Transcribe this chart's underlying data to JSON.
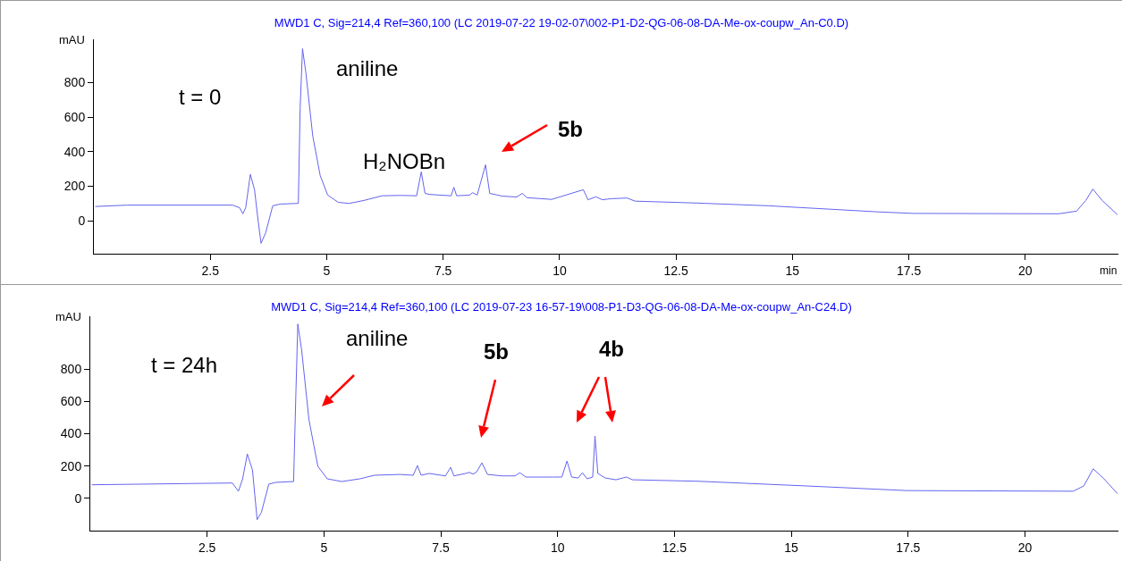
{
  "chart_data": [
    {
      "type": "line",
      "title": "MWD1 C, Sig=214,4 Ref=360,100 (LC 2019-07-22 19-02-07\\002-P1-D2-QG-06-08-DA-Me-ox-coupw_An-C0.D)",
      "xlabel": "min",
      "ylabel": "mAU",
      "annotations": [
        "t = 0",
        "aniline",
        "H₂NOBn",
        "5b"
      ],
      "series": [
        {
          "color": "#6464f0",
          "x": [
            0.03,
            0.72,
            2.98,
            3.13,
            3.2,
            3.26,
            3.36,
            3.45,
            3.53,
            3.59,
            3.69,
            3.84,
            4.0,
            4.39,
            4.43,
            4.48,
            4.55,
            4.7,
            4.86,
            5.02,
            5.25,
            5.48,
            5.8,
            6.19,
            6.58,
            6.93,
            7.03,
            7.11,
            7.2,
            7.67,
            7.73,
            7.79,
            8.07,
            8.13,
            8.23,
            8.41,
            8.5,
            8.77,
            9.08,
            9.2,
            9.3,
            9.83,
            10.51,
            10.61,
            10.78,
            10.92,
            11.1,
            11.45,
            11.62,
            12.94,
            14.5,
            16.83,
            17.6,
            20.72,
            21.1,
            21.3,
            21.45,
            21.65,
            21.98
          ],
          "values": [
            83,
            91,
            91,
            76,
            41,
            76,
            269,
            180,
            -6,
            -130,
            -68,
            87,
            97,
            101,
            655,
            996,
            862,
            490,
            262,
            149,
            107,
            101,
            118,
            145,
            147,
            145,
            283,
            159,
            153,
            145,
            194,
            145,
            149,
            163,
            149,
            324,
            159,
            143,
            138,
            159,
            134,
            124,
            180,
            122,
            139,
            122,
            128,
            132,
            114,
            103,
            87,
            52,
            43,
            41,
            56,
            118,
            184,
            118,
            35
          ]
        }
      ],
      "xlim": [
        0,
        22.0
      ],
      "xticks": [
        2.5,
        5,
        7.5,
        10,
        12.5,
        15,
        17.5,
        20
      ],
      "ylim": [
        -190,
        1050
      ],
      "yticks": [
        0,
        200,
        400,
        600,
        800
      ],
      "grid": false,
      "marker": "none",
      "line_style": "solid"
    },
    {
      "type": "line",
      "title": "MWD1 C, Sig=214,4 Ref=360,100 (LC 2019-07-23 16-57-19\\008-P1-D3-QG-06-08-DA-Me-ox-coupw_An-C24.D)",
      "ylabel": "mAU",
      "annotations": [
        "t = 24h",
        "aniline",
        "5b",
        "4b"
      ],
      "series": [
        {
          "color": "#6464f0",
          "x": [
            0.03,
            3.04,
            3.17,
            3.26,
            3.36,
            3.47,
            3.57,
            3.66,
            3.82,
            3.97,
            4.35,
            4.4,
            4.44,
            4.52,
            4.68,
            4.87,
            5.07,
            5.38,
            5.77,
            6.08,
            6.63,
            6.91,
            7.0,
            7.08,
            7.25,
            7.6,
            7.71,
            7.78,
            8.03,
            8.11,
            8.19,
            8.27,
            8.38,
            8.5,
            8.81,
            9.09,
            9.19,
            9.32,
            9.9,
            10.09,
            10.2,
            10.3,
            10.44,
            10.53,
            10.63,
            10.75,
            10.8,
            10.86,
            11.02,
            11.25,
            11.47,
            11.6,
            12.99,
            15.31,
            17.47,
            21.03,
            21.26,
            21.46,
            21.69,
            21.98
          ],
          "values": [
            84,
            95,
            44,
            121,
            275,
            176,
            -132,
            -88,
            88,
            99,
            104,
            661,
            1080,
            925,
            485,
            198,
            121,
            104,
            121,
            143,
            148,
            143,
            203,
            143,
            154,
            139,
            192,
            139,
            154,
            161,
            150,
            165,
            220,
            148,
            139,
            139,
            159,
            132,
            132,
            132,
            231,
            132,
            126,
            159,
            121,
            132,
            386,
            154,
            126,
            115,
            132,
            115,
            106,
            77,
            48,
            44,
            77,
            183,
            121,
            29
          ]
        }
      ],
      "xlim": [
        0,
        22.0
      ],
      "xticks": [
        2.5,
        5,
        7.5,
        10,
        12.5,
        15,
        17.5,
        20
      ],
      "ylim": [
        -200,
        1128
      ],
      "yticks": [
        0,
        200,
        400,
        600,
        800
      ],
      "grid": false,
      "marker": "none",
      "line_style": "solid"
    }
  ]
}
